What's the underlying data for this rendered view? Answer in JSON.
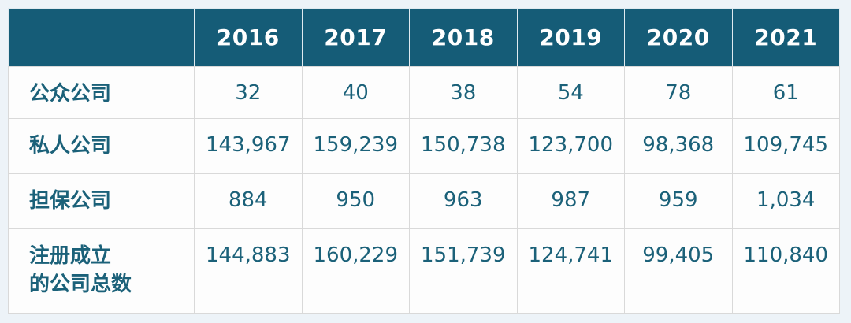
{
  "page": {
    "background": "#edf3f8"
  },
  "colors": {
    "header_bg": "#155c77",
    "header_text": "#ffffff",
    "cell_text": "#1b6179",
    "cell_bg": "#fdfdfd",
    "border": "#d9d9d9",
    "header_divider": "#e0eaf0"
  },
  "table": {
    "header": [
      "",
      "2016",
      "2017",
      "2018",
      "2019",
      "2020",
      "2021"
    ],
    "rows": [
      {
        "label": "公众公司",
        "values": [
          "32",
          "40",
          "38",
          "54",
          "78",
          "61"
        ]
      },
      {
        "label": "私人公司",
        "values": [
          "143,967",
          "159,239",
          "150,738",
          "123,700",
          "98,368",
          "109,745"
        ]
      },
      {
        "label": "担保公司",
        "values": [
          "884",
          "950",
          "963",
          "987",
          "959",
          "1,034"
        ]
      },
      {
        "label": "注册成立\n的公司总数",
        "values": [
          "144,883",
          "160,229",
          "151,739",
          "124,741",
          "99,405",
          "110,840"
        ]
      }
    ]
  },
  "chart_data": {
    "type": "table",
    "title": "",
    "categories": [
      "2016",
      "2017",
      "2018",
      "2019",
      "2020",
      "2021"
    ],
    "series": [
      {
        "name": "公众公司",
        "values": [
          32,
          40,
          38,
          54,
          78,
          61
        ]
      },
      {
        "name": "私人公司",
        "values": [
          143967,
          159239,
          150738,
          123700,
          98368,
          109745
        ]
      },
      {
        "name": "担保公司",
        "values": [
          884,
          950,
          963,
          987,
          959,
          1034
        ]
      },
      {
        "name": "注册成立的公司总数",
        "values": [
          144883,
          160229,
          151739,
          124741,
          99405,
          110840
        ]
      }
    ]
  }
}
